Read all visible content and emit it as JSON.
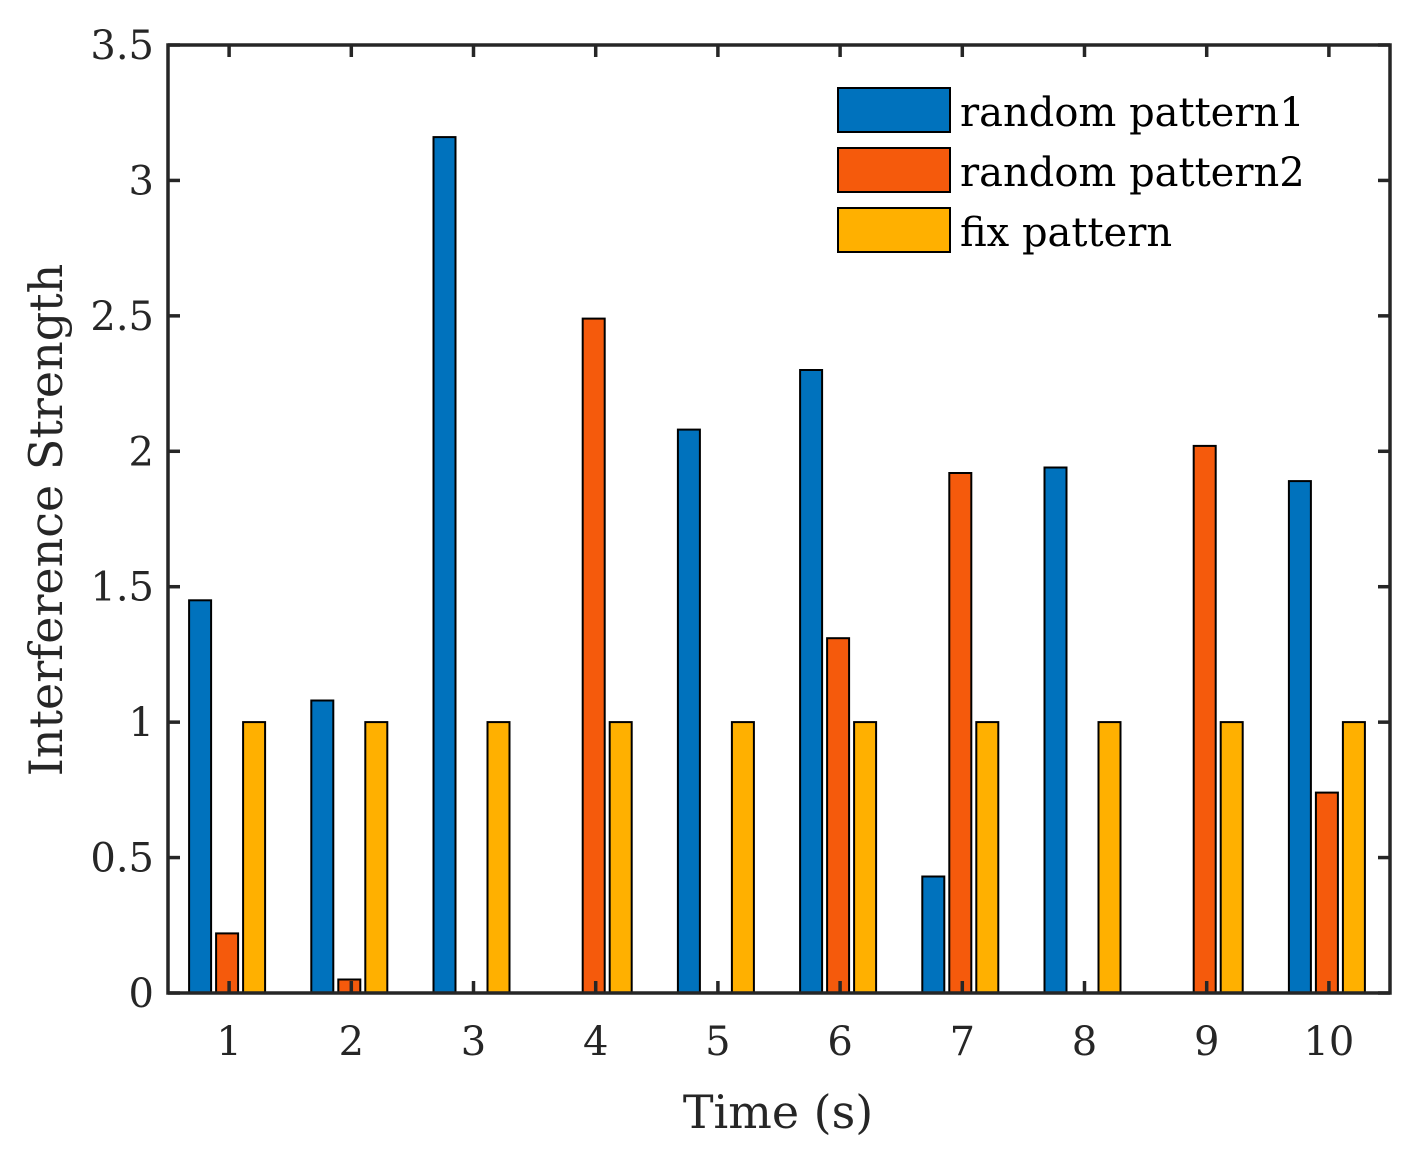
{
  "chart_data": {
    "type": "bar",
    "title": "",
    "xlabel": "Time (s)",
    "ylabel": "Interference Strength",
    "categories": [
      "1",
      "2",
      "3",
      "4",
      "5",
      "6",
      "7",
      "8",
      "9",
      "10"
    ],
    "ylim": [
      0,
      3.5
    ],
    "yticks": [
      0,
      0.5,
      1,
      1.5,
      2,
      2.5,
      3,
      3.5
    ],
    "ytick_labels": [
      "0",
      "0.5",
      "1",
      "1.5",
      "2",
      "2.5",
      "3",
      "3.5"
    ],
    "grid": false,
    "legend_position": "top-right",
    "series": [
      {
        "name": "random pattern1",
        "color": "#0072BD",
        "values": [
          1.45,
          1.08,
          3.16,
          0,
          2.08,
          2.3,
          0.43,
          1.94,
          0,
          1.89
        ]
      },
      {
        "name": "random pattern2",
        "color": "#F55A0C",
        "values": [
          0.22,
          0.05,
          0,
          2.49,
          0,
          1.31,
          1.92,
          0,
          2.02,
          0.74
        ]
      },
      {
        "name": "fix pattern",
        "color": "#FFB000",
        "values": [
          1,
          1,
          1,
          1,
          1,
          1,
          1,
          1,
          1,
          1
        ]
      }
    ]
  }
}
